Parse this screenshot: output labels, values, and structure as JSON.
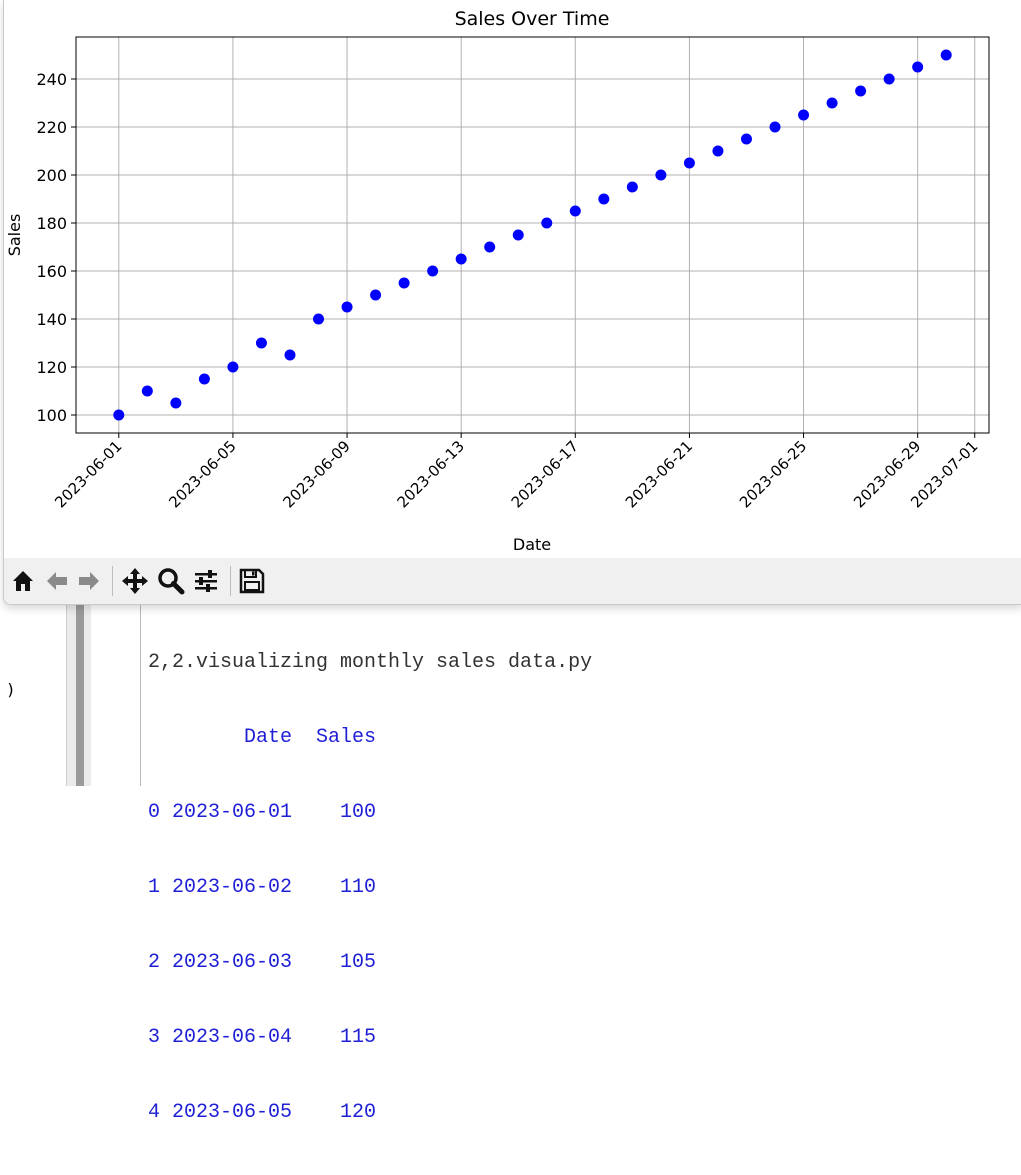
{
  "window": {
    "toolbar": [
      {
        "icon": "home-icon"
      },
      {
        "icon": "back-icon"
      },
      {
        "icon": "forward-icon"
      },
      {
        "icon": "pan-icon"
      },
      {
        "icon": "zoom-icon"
      },
      {
        "icon": "configure-subplots-icon"
      },
      {
        "icon": "save-icon"
      }
    ]
  },
  "console": {
    "paren": ")",
    "command": "2,2.visualizing monthly sales data.py",
    "header": "        Date  Sales",
    "rows": [
      "0 2023-06-01    100",
      "1 2023-06-02    110",
      "2 2023-06-03    105",
      "3 2023-06-04    115",
      "4 2023-06-05    120"
    ]
  },
  "chart_data": {
    "type": "scatter",
    "title": "Sales Over Time",
    "xlabel": "Date",
    "ylabel": "Sales",
    "x": [
      "2023-06-01",
      "2023-06-02",
      "2023-06-03",
      "2023-06-04",
      "2023-06-05",
      "2023-06-06",
      "2023-06-07",
      "2023-06-08",
      "2023-06-09",
      "2023-06-10",
      "2023-06-11",
      "2023-06-12",
      "2023-06-13",
      "2023-06-14",
      "2023-06-15",
      "2023-06-16",
      "2023-06-17",
      "2023-06-18",
      "2023-06-19",
      "2023-06-20",
      "2023-06-21",
      "2023-06-22",
      "2023-06-23",
      "2023-06-24",
      "2023-06-25",
      "2023-06-26",
      "2023-06-27",
      "2023-06-28",
      "2023-06-29",
      "2023-06-30"
    ],
    "y": [
      100,
      110,
      105,
      115,
      120,
      130,
      125,
      140,
      145,
      150,
      155,
      160,
      165,
      170,
      175,
      180,
      185,
      190,
      195,
      200,
      205,
      210,
      215,
      220,
      225,
      230,
      235,
      240,
      245,
      250
    ],
    "xlim": [
      "2023-05-30T12:00",
      "2023-07-01T12:00"
    ],
    "ylim": [
      92.5,
      257.5
    ],
    "xticks": [
      "2023-06-01",
      "2023-06-05",
      "2023-06-09",
      "2023-06-13",
      "2023-06-17",
      "2023-06-21",
      "2023-06-25",
      "2023-06-29",
      "2023-07-01"
    ],
    "yticks": [
      100,
      120,
      140,
      160,
      180,
      200,
      220,
      240
    ],
    "grid": true,
    "marker_color": "#0000ff"
  }
}
